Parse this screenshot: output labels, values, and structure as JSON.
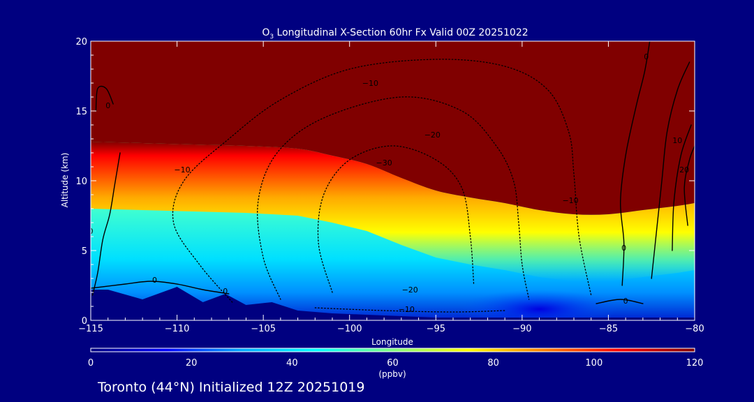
{
  "colors": {
    "background": "#000080",
    "text": "#ffffff",
    "stratosphere": "#800000",
    "contour": "#000000"
  },
  "chart_data": {
    "type": "heatmap",
    "title_prefix": "O",
    "title_subscript": "3",
    "title_rest": " Longitudinal X-Section 60hr  Fx Valid 00Z 20251022",
    "xlabel": "Longitude",
    "ylabel": "Altitude (km)",
    "xlim": [
      -115,
      -80
    ],
    "ylim": [
      0,
      20
    ],
    "x_ticks": [
      -115,
      -110,
      -105,
      -100,
      -95,
      -90,
      -85,
      -80
    ],
    "x_tick_labels": [
      "−115",
      "−110",
      "−105",
      "−100",
      "−95",
      "−90",
      "−85",
      "−80"
    ],
    "y_ticks": [
      0,
      5,
      10,
      15,
      20
    ],
    "y_tick_labels": [
      "0",
      "5",
      "10",
      "15",
      "20"
    ],
    "colorbar": {
      "min": 0,
      "max": 120,
      "ticks": [
        0,
        20,
        40,
        60,
        80,
        100,
        120
      ],
      "tick_labels": [
        "0",
        "20",
        "40",
        "60",
        "80",
        "100",
        "120"
      ],
      "label": "(ppbv)",
      "colormap": "rainbow",
      "colormap_stops": [
        "#000080",
        "#0000ff",
        "#00aaff",
        "#00ffff",
        "#80ff80",
        "#ffff00",
        "#ff8000",
        "#ff0000",
        "#800000"
      ]
    },
    "fields": {
      "tropopause_km": {
        "lon": [
          -115,
          -112,
          -109,
          -106,
          -103,
          -101,
          -99,
          -97,
          -95,
          -93,
          -91,
          -89,
          -87,
          -85,
          -83,
          -81,
          -80
        ],
        "alt": [
          12.8,
          12.7,
          12.6,
          12.5,
          12.3,
          11.8,
          11.2,
          10.2,
          9.3,
          8.8,
          8.4,
          7.9,
          7.6,
          7.6,
          7.9,
          8.2,
          8.4
        ]
      },
      "ozone_max_ppbv": {
        "lon": -98.5,
        "alt_km": 9.3,
        "value": 85
      },
      "terrain_km": {
        "lon": [
          -115,
          -114,
          -112,
          -110,
          -108.5,
          -107.2,
          -106,
          -104.5,
          -103,
          -101,
          -99,
          -97,
          -95,
          -93,
          -91,
          -89,
          -87,
          -85,
          -83,
          -81,
          -80
        ],
        "alt": [
          2.2,
          2.2,
          1.5,
          2.4,
          1.3,
          1.9,
          1.1,
          1.3,
          0.7,
          0.5,
          0.4,
          0.3,
          0.2,
          0.2,
          0.2,
          0.2,
          0.2,
          0.2,
          0.2,
          0.2,
          0.2
        ]
      }
    },
    "contours": [
      {
        "value": 0,
        "style": "solid",
        "lon": [
          -114.9,
          -114.6,
          -114.3,
          -113.9,
          -113.6,
          -113.3
        ],
        "alt": [
          1.8,
          3.4,
          5.8,
          7.6,
          9.8,
          12.0
        ]
      },
      {
        "value": 0,
        "style": "solid",
        "lon": [
          -115,
          -113,
          -111.5,
          -110,
          -108.5,
          -107
        ],
        "alt": [
          2.3,
          2.6,
          2.8,
          2.6,
          2.2,
          1.9
        ]
      },
      {
        "value": 0,
        "style": "solid",
        "lon": [
          -113.7,
          -114.1,
          -114.6,
          -114.7
        ],
        "alt": [
          15.5,
          16.6,
          16.6,
          15.0
        ]
      },
      {
        "value": 0,
        "style": "solid",
        "lon": [
          -84.2,
          -84.1,
          -84.3,
          -84.0,
          -83.4,
          -82.9,
          -82.6
        ],
        "alt": [
          2.5,
          5.5,
          8.5,
          11.8,
          15.3,
          17.8,
          20.0
        ]
      },
      {
        "value": 0,
        "style": "solid",
        "lon": [
          -85.7,
          -84.3,
          -83.0
        ],
        "alt": [
          1.2,
          1.5,
          1.2
        ]
      },
      {
        "value": 10,
        "style": "solid",
        "lon": [
          -82.5,
          -82.2,
          -81.9,
          -81.6,
          -81.0,
          -80.3
        ],
        "alt": [
          3.0,
          6.5,
          10.0,
          13.5,
          16.5,
          18.5
        ]
      },
      {
        "value": 20,
        "style": "solid",
        "lon": [
          -81.3,
          -81.2,
          -80.8,
          -80.2
        ],
        "alt": [
          5.0,
          8.5,
          11.8,
          14.0
        ]
      },
      {
        "value": 30,
        "style": "solid",
        "lon": [
          -80.4,
          -80.6,
          -80.3,
          -80.0
        ],
        "alt": [
          6.8,
          9.5,
          11.5,
          12.5
        ]
      },
      {
        "value": -10,
        "style": "dotted",
        "lon": [
          -106.8,
          -108.7,
          -110.2,
          -109.6,
          -107.0,
          -104.0,
          -100.0,
          -95.0,
          -91.0,
          -88.5,
          -87.3,
          -87.0,
          -86.7,
          -86.0
        ],
        "alt": [
          1.3,
          4.0,
          7.0,
          10.0,
          13.0,
          15.8,
          18.0,
          18.7,
          18.2,
          16.5,
          13.5,
          10.5,
          6.0,
          1.8
        ]
      },
      {
        "value": -20,
        "style": "dotted",
        "lon": [
          -104.0,
          -105.0,
          -105.3,
          -104.2,
          -101.5,
          -97.0,
          -93.5,
          -91.5,
          -90.5,
          -90.2,
          -90.0,
          -89.6
        ],
        "alt": [
          1.5,
          4.5,
          8.5,
          12.0,
          14.5,
          16.0,
          15.0,
          12.5,
          10.0,
          7.0,
          4.0,
          1.5
        ]
      },
      {
        "value": -30,
        "style": "dotted",
        "lon": [
          -101.0,
          -101.8,
          -101.5,
          -100.0,
          -97.5,
          -95.0,
          -93.5,
          -93.0,
          -92.8
        ],
        "alt": [
          2.0,
          5.5,
          9.0,
          11.5,
          12.5,
          11.5,
          9.5,
          6.0,
          2.5
        ]
      },
      {
        "value": -10,
        "style": "dotted",
        "lon": [
          -102.0,
          -98.0,
          -94.0,
          -91.0
        ],
        "alt": [
          0.9,
          0.7,
          0.6,
          0.7
        ]
      }
    ],
    "contour_labels": [
      {
        "text": "0",
        "lon": -114.0,
        "alt": 15.4
      },
      {
        "text": "0",
        "lon": -115.0,
        "alt": 6.4
      },
      {
        "text": "0",
        "lon": -111.3,
        "alt": 2.9
      },
      {
        "text": "0",
        "lon": -107.2,
        "alt": 2.1
      },
      {
        "text": "0",
        "lon": -84.1,
        "alt": 5.2
      },
      {
        "text": "0",
        "lon": -82.8,
        "alt": 18.9
      },
      {
        "text": "0",
        "lon": -84.0,
        "alt": 1.4
      },
      {
        "text": "10",
        "lon": -81.0,
        "alt": 12.9
      },
      {
        "text": "20",
        "lon": -80.6,
        "alt": 10.8
      },
      {
        "text": "−10",
        "lon": -109.7,
        "alt": 10.8
      },
      {
        "text": "−10",
        "lon": -98.8,
        "alt": 17.0
      },
      {
        "text": "−10",
        "lon": -87.2,
        "alt": 8.6
      },
      {
        "text": "−10",
        "lon": -96.7,
        "alt": 0.8
      },
      {
        "text": "−20",
        "lon": -95.2,
        "alt": 13.3
      },
      {
        "text": "−20",
        "lon": -96.5,
        "alt": 2.2
      },
      {
        "text": "−30",
        "lon": -98.0,
        "alt": 11.3
      }
    ]
  },
  "footer": {
    "caption": "Toronto (44°N) Initialized 12Z 20251019"
  }
}
